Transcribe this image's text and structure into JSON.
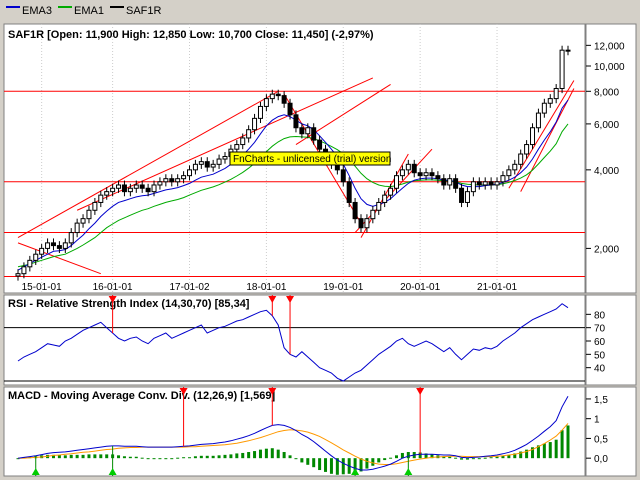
{
  "legend": [
    {
      "label": "EMA3",
      "color": "#0000cc"
    },
    {
      "label": "EMA1",
      "color": "#00aa00"
    },
    {
      "label": "SAF1R",
      "color": "#000000"
    }
  ],
  "price_title": "SAF1R [Open: 11,900  High: 12,850  Low: 10,700  Close: 11,450] (-2,97%)",
  "rsi_title": "RSI - Relative Strength Index (14,30,70) [85,34]",
  "macd_title": "MACD - Moving Average Conv. Div. (12,26,9) [1,569]",
  "watermark": "FnCharts - unlicensed (trial) version",
  "colors": {
    "ema3": "#0000cc",
    "ema1": "#00aa00",
    "price": "#000000",
    "trend": "#ff0000",
    "signal": "#ff9900",
    "hist": "#008800",
    "watermark_bg": "#ffff00"
  },
  "chart_data": [
    {
      "type": "candlestick",
      "title": "SAF1R [Open: 11,900  High: 12,850  Low: 10,700  Close: 11,450] (-2,97%)",
      "x_ticks": [
        "15-01-01",
        "16-01-01",
        "17-01-02",
        "18-01-01",
        "19-01-01",
        "20-01-01",
        "21-01-01"
      ],
      "y_ticks": [
        "12,000",
        "10,000",
        "8,000",
        "6,000",
        "4,000",
        "2,000"
      ],
      "y_scale": "log",
      "ylim": [
        1500,
        13500
      ],
      "series": [
        {
          "name": "SAF1R",
          "close": [
            1600,
            1700,
            1800,
            1900,
            2000,
            2100,
            2050,
            2000,
            2100,
            2300,
            2500,
            2600,
            2800,
            3000,
            3200,
            3300,
            3400,
            3500,
            3300,
            3400,
            3500,
            3400,
            3300,
            3500,
            3600,
            3700,
            3600,
            3700,
            3800,
            4000,
            4200,
            4300,
            4100,
            4200,
            4400,
            4500,
            4800,
            5000,
            5300,
            5700,
            6300,
            7000,
            7500,
            7800,
            7700,
            7200,
            6500,
            5800,
            5500,
            5800,
            5200,
            4800,
            4500,
            4200,
            4000,
            3600,
            3000,
            2600,
            2400,
            2600,
            2800,
            3000,
            3200,
            3400,
            3800,
            4000,
            4200,
            3900,
            3800,
            3900,
            3800,
            3700,
            3500,
            3700,
            3400,
            3000,
            3300,
            3600,
            3500,
            3600,
            3500,
            3600,
            3800,
            4000,
            4200,
            4600,
            5000,
            5800,
            6600,
            7200,
            7500,
            8200,
            11500,
            11450
          ]
        },
        {
          "name": "EMA3",
          "values": [
            1650,
            1700,
            1750,
            1800,
            1850,
            1900,
            1950,
            1960,
            1980,
            2050,
            2150,
            2250,
            2380,
            2500,
            2650,
            2780,
            2900,
            3000,
            3050,
            3100,
            3150,
            3180,
            3200,
            3250,
            3300,
            3350,
            3380,
            3420,
            3480,
            3550,
            3650,
            3750,
            3800,
            3850,
            3950,
            4050,
            4200,
            4350,
            4550,
            4800,
            5100,
            5500,
            5900,
            6200,
            6400,
            6500,
            6400,
            6200,
            6000,
            5900,
            5700,
            5400,
            5100,
            4800,
            4500,
            4200,
            3800,
            3400,
            3100,
            2950,
            2900,
            2950,
            3000,
            3100,
            3250,
            3400,
            3550,
            3650,
            3700,
            3720,
            3720,
            3700,
            3650,
            3650,
            3600,
            3500,
            3450,
            3450,
            3450,
            3480,
            3500,
            3520,
            3580,
            3650,
            3750,
            3900,
            4100,
            4400,
            4800,
            5200,
            5600,
            6100,
            6900,
            7400
          ]
        },
        {
          "name": "EMA1",
          "values": [
            1700,
            1720,
            1740,
            1770,
            1800,
            1830,
            1860,
            1880,
            1900,
            1950,
            2000,
            2060,
            2130,
            2200,
            2300,
            2400,
            2480,
            2560,
            2620,
            2680,
            2740,
            2800,
            2840,
            2900,
            2950,
            3000,
            3040,
            3080,
            3130,
            3200,
            3270,
            3340,
            3390,
            3440,
            3510,
            3590,
            3680,
            3790,
            3910,
            4060,
            4240,
            4460,
            4700,
            4930,
            5120,
            5270,
            5350,
            5370,
            5350,
            5330,
            5270,
            5170,
            5050,
            4920,
            4780,
            4610,
            4380,
            4130,
            3880,
            3700,
            3580,
            3500,
            3460,
            3450,
            3480,
            3530,
            3590,
            3630,
            3650,
            3660,
            3660,
            3650,
            3630,
            3620,
            3600,
            3550,
            3520,
            3510,
            3500,
            3500,
            3500,
            3510,
            3540,
            3580,
            3640,
            3720,
            3830,
            3990,
            4210,
            4460,
            4720,
            5040,
            5600,
            6000
          ]
        }
      ]
    },
    {
      "type": "line",
      "title": "RSI - Relative Strength Index (14,30,70) [85,34]",
      "y_ticks": [
        "80",
        "70",
        "60",
        "50",
        "40"
      ],
      "ylim": [
        30,
        90
      ],
      "reference_lines": [
        70,
        30
      ],
      "series": [
        {
          "name": "RSI",
          "values": [
            45,
            48,
            50,
            52,
            55,
            58,
            57,
            56,
            60,
            62,
            65,
            68,
            70,
            72,
            74,
            70,
            66,
            62,
            60,
            62,
            63,
            60,
            58,
            62,
            64,
            66,
            62,
            64,
            66,
            68,
            70,
            72,
            66,
            68,
            70,
            71,
            73,
            75,
            76,
            78,
            80,
            82,
            83,
            79,
            72,
            55,
            50,
            48,
            52,
            48,
            44,
            40,
            38,
            36,
            32,
            30,
            33,
            36,
            38,
            42,
            46,
            50,
            53,
            56,
            60,
            62,
            58,
            56,
            58,
            60,
            58,
            55,
            52,
            55,
            50,
            46,
            50,
            54,
            53,
            55,
            54,
            56,
            60,
            63,
            66,
            70,
            73,
            76,
            78,
            80,
            82,
            84,
            88,
            85
          ]
        }
      ]
    },
    {
      "type": "bar",
      "title": "MACD - Moving Average Conv. Div. (12,26,9) [1,569]",
      "y_ticks": [
        "1,5",
        "1",
        "0,5",
        "0,0"
      ],
      "ylim": [
        -0.35,
        1.65
      ],
      "series": [
        {
          "name": "MACD",
          "values": [
            0.0,
            0.02,
            0.04,
            0.06,
            0.09,
            0.12,
            0.14,
            0.15,
            0.16,
            0.18,
            0.2,
            0.22,
            0.24,
            0.26,
            0.28,
            0.3,
            0.31,
            0.31,
            0.3,
            0.3,
            0.3,
            0.29,
            0.28,
            0.28,
            0.28,
            0.28,
            0.28,
            0.29,
            0.3,
            0.31,
            0.33,
            0.35,
            0.36,
            0.37,
            0.39,
            0.41,
            0.44,
            0.48,
            0.52,
            0.57,
            0.63,
            0.7,
            0.77,
            0.83,
            0.85,
            0.83,
            0.78,
            0.7,
            0.6,
            0.52,
            0.42,
            0.3,
            0.18,
            0.06,
            -0.05,
            -0.13,
            -0.2,
            -0.26,
            -0.3,
            -0.3,
            -0.28,
            -0.24,
            -0.2,
            -0.15,
            -0.08,
            0.0,
            0.05,
            0.08,
            0.1,
            0.1,
            0.1,
            0.09,
            0.08,
            0.08,
            0.06,
            0.02,
            0.01,
            0.02,
            0.03,
            0.05,
            0.06,
            0.08,
            0.11,
            0.15,
            0.2,
            0.27,
            0.35,
            0.45,
            0.56,
            0.68,
            0.8,
            0.95,
            1.3,
            1.57
          ]
        },
        {
          "name": "Signal",
          "values": [
            0.0,
            0.0,
            0.01,
            0.02,
            0.03,
            0.05,
            0.07,
            0.08,
            0.1,
            0.11,
            0.13,
            0.15,
            0.16,
            0.18,
            0.2,
            0.22,
            0.23,
            0.25,
            0.26,
            0.27,
            0.27,
            0.28,
            0.28,
            0.28,
            0.28,
            0.28,
            0.28,
            0.28,
            0.28,
            0.29,
            0.29,
            0.3,
            0.31,
            0.32,
            0.33,
            0.34,
            0.36,
            0.38,
            0.41,
            0.44,
            0.48,
            0.52,
            0.57,
            0.62,
            0.67,
            0.7,
            0.72,
            0.71,
            0.69,
            0.66,
            0.61,
            0.55,
            0.47,
            0.39,
            0.3,
            0.21,
            0.13,
            0.05,
            -0.02,
            -0.08,
            -0.12,
            -0.15,
            -0.16,
            -0.16,
            -0.14,
            -0.11,
            -0.08,
            -0.05,
            -0.02,
            0.0,
            0.02,
            0.03,
            0.04,
            0.05,
            0.05,
            0.05,
            0.04,
            0.04,
            0.04,
            0.04,
            0.04,
            0.05,
            0.06,
            0.08,
            0.1,
            0.13,
            0.17,
            0.22,
            0.29,
            0.37,
            0.46,
            0.56,
            0.71,
            0.88
          ]
        }
      ]
    }
  ]
}
